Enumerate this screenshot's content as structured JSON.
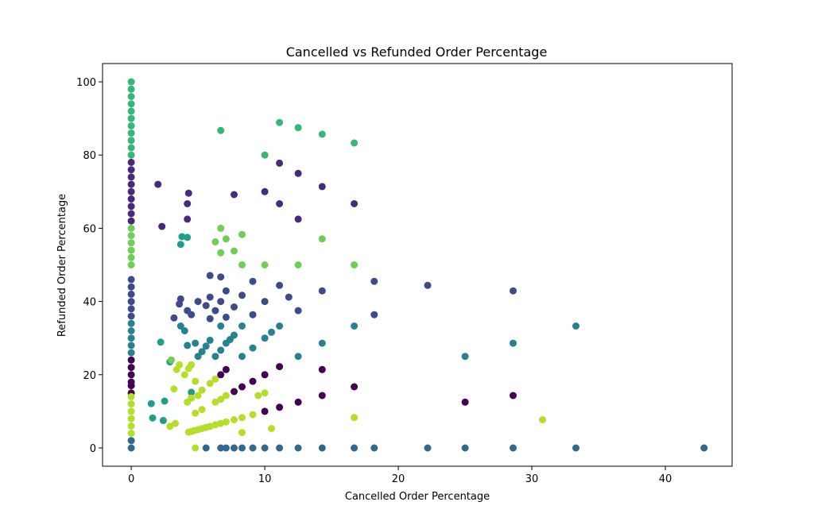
{
  "chart_data": {
    "type": "scatter",
    "title": "Cancelled vs Refunded Order Percentage",
    "xlabel": "Cancelled Order Percentage",
    "ylabel": "Refunded Order Percentage",
    "xlim": [
      -2.15,
      45.0
    ],
    "ylim": [
      -5.0,
      105.0
    ],
    "x_ticks": [
      0,
      10,
      20,
      30,
      40
    ],
    "y_ticks": [
      0,
      20,
      40,
      60,
      80,
      100
    ],
    "grid": false,
    "legend": "none",
    "colormap": "viridis",
    "series": [
      {
        "color": "#440154",
        "points": [
          [
            0,
            15
          ],
          [
            0,
            17
          ],
          [
            0,
            18
          ],
          [
            0,
            20
          ],
          [
            0,
            22
          ],
          [
            0,
            24
          ],
          [
            6.7,
            20
          ],
          [
            7.1,
            21.4
          ],
          [
            7.7,
            15.4
          ],
          [
            8.3,
            16.7
          ],
          [
            9.1,
            18.2
          ],
          [
            10,
            10
          ],
          [
            10,
            20
          ],
          [
            11.1,
            11.1
          ],
          [
            11.1,
            22.2
          ],
          [
            12.5,
            12.5
          ],
          [
            14.3,
            14.3
          ],
          [
            14.3,
            21.4
          ],
          [
            16.7,
            16.7
          ],
          [
            25,
            12.5
          ],
          [
            28.6,
            14.3
          ]
        ]
      },
      {
        "color": "#472a7a",
        "points": [
          [
            0,
            62
          ],
          [
            0,
            64
          ],
          [
            0,
            66
          ],
          [
            0,
            68
          ],
          [
            0,
            70
          ],
          [
            0,
            72
          ],
          [
            0,
            74
          ],
          [
            0,
            76
          ],
          [
            0,
            78
          ],
          [
            2,
            72
          ],
          [
            2.3,
            60.5
          ],
          [
            4.2,
            62.5
          ],
          [
            4.2,
            66.7
          ],
          [
            4.3,
            69.6
          ],
          [
            7.7,
            69.2
          ],
          [
            10,
            70
          ],
          [
            11.1,
            66.7
          ],
          [
            11.1,
            77.8
          ],
          [
            12.5,
            62.5
          ],
          [
            12.5,
            75
          ],
          [
            14.3,
            71.4
          ],
          [
            16.7,
            66.7
          ]
        ]
      },
      {
        "color": "#3e4a89",
        "points": [
          [
            0,
            36
          ],
          [
            0,
            38
          ],
          [
            0,
            40
          ],
          [
            0,
            42
          ],
          [
            0,
            44
          ],
          [
            0,
            46
          ],
          [
            3.2,
            35.5
          ],
          [
            3.6,
            39.3
          ],
          [
            3.7,
            40.7
          ],
          [
            4.2,
            37.5
          ],
          [
            4.5,
            36.4
          ],
          [
            5,
            40
          ],
          [
            5.6,
            38.9
          ],
          [
            5.9,
            35.3
          ],
          [
            5.9,
            41.2
          ],
          [
            5.9,
            47.1
          ],
          [
            6.3,
            37.5
          ],
          [
            6.7,
            40
          ],
          [
            6.7,
            46.7
          ],
          [
            7.1,
            35.7
          ],
          [
            7.1,
            42.9
          ],
          [
            7.7,
            38.5
          ],
          [
            8.3,
            41.7
          ],
          [
            9.1,
            36.4
          ],
          [
            9.1,
            45.5
          ],
          [
            10,
            40
          ],
          [
            11.1,
            44.4
          ],
          [
            11.8,
            41.2
          ],
          [
            12.5,
            37.5
          ],
          [
            14.3,
            42.9
          ],
          [
            18.2,
            36.4
          ],
          [
            18.2,
            45.5
          ],
          [
            22.2,
            44.4
          ],
          [
            28.6,
            42.9
          ]
        ]
      },
      {
        "color": "#31688e",
        "points": [
          [
            0,
            0
          ],
          [
            0,
            2
          ],
          [
            5.6,
            0
          ],
          [
            6.7,
            0
          ],
          [
            7.1,
            0
          ],
          [
            7.7,
            0
          ],
          [
            8.3,
            0
          ],
          [
            9.1,
            0
          ],
          [
            10,
            0
          ],
          [
            11.1,
            0
          ],
          [
            12.5,
            0
          ],
          [
            14.3,
            0
          ],
          [
            16.7,
            0
          ],
          [
            18.2,
            0
          ],
          [
            22.2,
            0
          ],
          [
            25,
            0
          ],
          [
            28.6,
            0
          ],
          [
            33.3,
            0
          ],
          [
            42.9,
            0
          ]
        ]
      },
      {
        "color": "#26828e",
        "points": [
          [
            0,
            26
          ],
          [
            0,
            28
          ],
          [
            0,
            30
          ],
          [
            0,
            32
          ],
          [
            0,
            34
          ],
          [
            3.7,
            33.3
          ],
          [
            4,
            32
          ],
          [
            4.2,
            28
          ],
          [
            4.8,
            28.6
          ],
          [
            5,
            25
          ],
          [
            5.3,
            26.3
          ],
          [
            5.6,
            27.8
          ],
          [
            5.9,
            29.4
          ],
          [
            6.3,
            25
          ],
          [
            6.7,
            26.7
          ],
          [
            6.7,
            33.3
          ],
          [
            7.1,
            28.6
          ],
          [
            7.4,
            29.6
          ],
          [
            7.7,
            30.8
          ],
          [
            8.3,
            25
          ],
          [
            8.3,
            33.3
          ],
          [
            9.1,
            27.3
          ],
          [
            10,
            30
          ],
          [
            10.5,
            31.6
          ],
          [
            11.1,
            33.3
          ],
          [
            12.5,
            25
          ],
          [
            14.3,
            28.6
          ],
          [
            16.7,
            33.3
          ],
          [
            25,
            25
          ],
          [
            28.6,
            28.6
          ],
          [
            33.3,
            33.3
          ]
        ]
      },
      {
        "color": "#1f9e89",
        "points": [
          [
            1.5,
            12.1
          ],
          [
            1.6,
            8.2
          ],
          [
            2.2,
            28.9
          ],
          [
            2.4,
            7.5
          ],
          [
            2.5,
            12.8
          ],
          [
            2.9,
            23.5
          ],
          [
            3.7,
            55.6
          ],
          [
            3.8,
            57.7
          ],
          [
            4.2,
            57.5
          ],
          [
            4.5,
            15.2
          ]
        ]
      },
      {
        "color": "#35b779",
        "points": [
          [
            0,
            80
          ],
          [
            0,
            82
          ],
          [
            0,
            84
          ],
          [
            0,
            86
          ],
          [
            0,
            88
          ],
          [
            0,
            90
          ],
          [
            0,
            92
          ],
          [
            0,
            94
          ],
          [
            0,
            96
          ],
          [
            0,
            98
          ],
          [
            0,
            100
          ],
          [
            6.7,
            86.7
          ],
          [
            10,
            80
          ],
          [
            11.1,
            88.9
          ],
          [
            12.5,
            87.5
          ],
          [
            14.3,
            85.7
          ],
          [
            16.7,
            83.3
          ]
        ]
      },
      {
        "color": "#6ece58",
        "points": [
          [
            0,
            50
          ],
          [
            0,
            52
          ],
          [
            0,
            54
          ],
          [
            0,
            56
          ],
          [
            0,
            58
          ],
          [
            0,
            60
          ],
          [
            3,
            24
          ],
          [
            6.3,
            56.3
          ],
          [
            6.7,
            53.3
          ],
          [
            6.7,
            60
          ],
          [
            7.1,
            57.1
          ],
          [
            7.7,
            53.8
          ],
          [
            8.3,
            50
          ],
          [
            8.3,
            58.3
          ],
          [
            10,
            50
          ],
          [
            12.5,
            50
          ],
          [
            14.3,
            57.1
          ],
          [
            16.7,
            50
          ]
        ]
      },
      {
        "color": "#b5de2b",
        "points": [
          [
            0,
            4
          ],
          [
            0,
            6
          ],
          [
            0,
            8
          ],
          [
            0,
            10
          ],
          [
            0,
            12
          ],
          [
            0,
            14
          ],
          [
            2.9,
            5.9
          ],
          [
            3.2,
            16.1
          ],
          [
            3.3,
            6.7
          ],
          [
            3.4,
            21.4
          ],
          [
            3.6,
            22.7
          ],
          [
            4,
            20
          ],
          [
            4.2,
            12.5
          ],
          [
            4.3,
            21.7
          ],
          [
            4.3,
            4.3
          ],
          [
            4.5,
            4.5
          ],
          [
            4.5,
            13.6
          ],
          [
            4.5,
            22.7
          ],
          [
            4.7,
            4.7
          ],
          [
            4.8,
            9.5
          ],
          [
            4.8,
            0
          ],
          [
            4.8,
            18.2
          ],
          [
            5,
            5
          ],
          [
            5,
            14.3
          ],
          [
            5.3,
            5.3
          ],
          [
            5.3,
            15.8
          ],
          [
            5.3,
            10.5
          ],
          [
            5.6,
            5.6
          ],
          [
            5.9,
            5.9
          ],
          [
            5.9,
            17.6
          ],
          [
            6.3,
            6.3
          ],
          [
            6.3,
            12.5
          ],
          [
            6.3,
            18.8
          ],
          [
            6.7,
            6.7
          ],
          [
            6.7,
            13.3
          ],
          [
            7.1,
            7.1
          ],
          [
            7.1,
            14.3
          ],
          [
            7.7,
            7.7
          ],
          [
            8.3,
            8.3
          ],
          [
            8.3,
            4.2
          ],
          [
            9.1,
            9.1
          ],
          [
            9.5,
            14.3
          ],
          [
            10,
            15
          ],
          [
            10.5,
            5.3
          ],
          [
            16.7,
            8.3
          ],
          [
            30.8,
            7.7
          ]
        ]
      }
    ]
  }
}
